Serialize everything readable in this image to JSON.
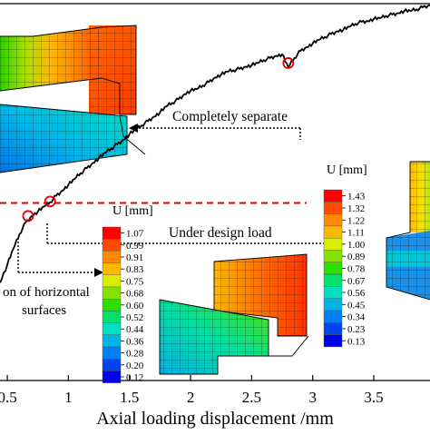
{
  "chart_data": {
    "type": "line",
    "title": "",
    "xlabel": "Axial loading displacement /mm",
    "ylabel": "",
    "xlim": [
      0.44,
      3.96
    ],
    "ylim": [
      -1.0,
      4.2
    ],
    "x_ticks": [
      0.5,
      1,
      1.5,
      2,
      2.5,
      3,
      3.5
    ],
    "x_tick_labels": [
      "0.5",
      "1",
      "1.5",
      "2",
      "2.5",
      "3",
      "3.5"
    ],
    "grid": false,
    "series": [
      {
        "name": "",
        "color": "#000000",
        "x": [
          0.44,
          0.5,
          0.55,
          0.6,
          0.65,
          0.7,
          0.75,
          0.8,
          0.85,
          0.9,
          0.95,
          1.0,
          1.05,
          1.1,
          1.15,
          1.2,
          1.25,
          1.3,
          1.35,
          1.4,
          1.45,
          1.5,
          1.55,
          1.6,
          1.65,
          1.7,
          1.75,
          1.8,
          1.85,
          1.9,
          1.95,
          2.0,
          2.05,
          2.1,
          2.15,
          2.2,
          2.25,
          2.3,
          2.35,
          2.4,
          2.45,
          2.5,
          2.55,
          2.6,
          2.65,
          2.7,
          2.75,
          2.8,
          2.85,
          2.9,
          2.95,
          3.0,
          3.05,
          3.1,
          3.15,
          3.2,
          3.25,
          3.3,
          3.35,
          3.4,
          3.45,
          3.5,
          3.55,
          3.6,
          3.65,
          3.7,
          3.75,
          3.8,
          3.85,
          3.9,
          3.96
        ],
        "y": [
          0.35,
          0.6,
          0.82,
          1.02,
          1.18,
          1.27,
          1.33,
          1.4,
          1.46,
          1.55,
          1.62,
          1.7,
          1.78,
          1.86,
          1.93,
          2.0,
          2.07,
          2.14,
          2.2,
          2.26,
          2.32,
          2.4,
          2.46,
          2.52,
          2.58,
          2.64,
          2.7,
          2.78,
          2.83,
          2.88,
          2.95,
          3.0,
          3.02,
          3.07,
          3.12,
          3.18,
          3.22,
          3.26,
          3.28,
          3.3,
          3.33,
          3.35,
          3.38,
          3.42,
          3.45,
          3.48,
          3.5,
          3.32,
          3.45,
          3.55,
          3.6,
          3.65,
          3.7,
          3.74,
          3.78,
          3.82,
          3.84,
          3.88,
          3.92,
          3.95,
          3.96,
          3.99,
          4.0,
          4.03,
          4.05,
          4.07,
          4.1,
          4.1,
          4.12,
          4.15,
          4.18
        ]
      }
    ],
    "design_load_line": {
      "y": 1.45,
      "color": "#e00000",
      "style": "dashed"
    },
    "markers": [
      {
        "x": 0.67,
        "y": 1.27,
        "label": "on of horizontal"
      },
      {
        "x": 0.85,
        "y": 1.47,
        "label": "Under design load"
      },
      {
        "x": 2.8,
        "y": 3.38,
        "label": "Completely separate"
      }
    ],
    "annotations": {
      "completely_separate": "Completely separate",
      "under_design_load": "Under design load",
      "horizontal_1": "on of horizontal",
      "horizontal_2": "surfaces"
    },
    "legend_left": {
      "title": "U [mm]",
      "values": [
        "1.07",
        "0.99",
        "0.91",
        "0.83",
        "0.75",
        "0.68",
        "0.60",
        "0.52",
        "0.44",
        "0.36",
        "0.28",
        "0.20",
        "0.12"
      ],
      "colors": [
        "#ff0000",
        "#ff4a00",
        "#ff8a00",
        "#ffb800",
        "#d8ee00",
        "#86e000",
        "#2ede00",
        "#00e06a",
        "#00e0c0",
        "#00b4e8",
        "#0080f0",
        "#0044f0",
        "#0000e6"
      ]
    },
    "legend_right": {
      "title": "U [mm]",
      "values": [
        "1.43",
        "1.32",
        "1.22",
        "1.11",
        "1.00",
        "0.89",
        "0.78",
        "0.67",
        "0.56",
        "0.45",
        "0.34",
        "0.23",
        "0.13"
      ],
      "colors": [
        "#ff0000",
        "#ff4a00",
        "#ff8a00",
        "#ffb800",
        "#d8ee00",
        "#86e000",
        "#2ede00",
        "#00e06a",
        "#00e0c0",
        "#00b4e8",
        "#0080f0",
        "#0044f0",
        "#0000e6"
      ]
    }
  }
}
